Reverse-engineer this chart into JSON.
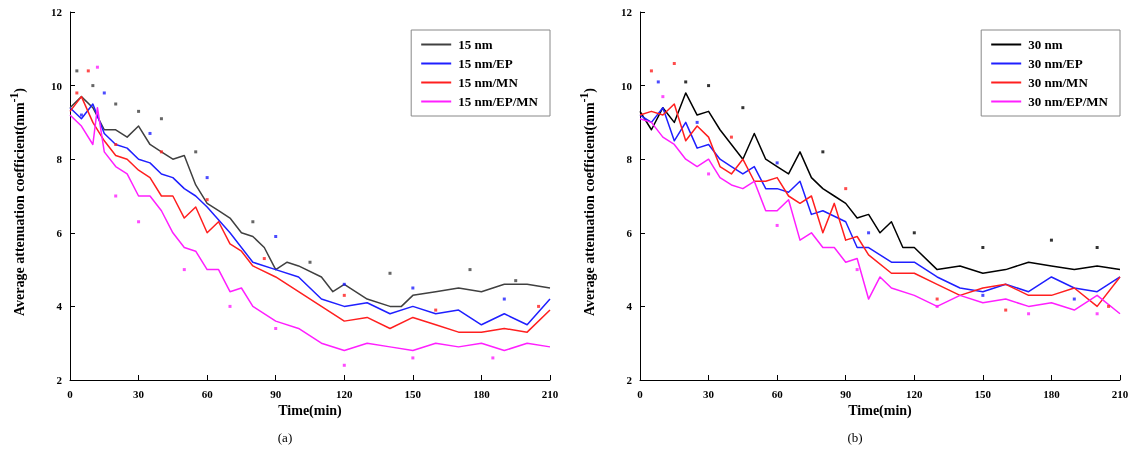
{
  "chart_data": [
    {
      "type": "line",
      "xlabel": "Time(min)",
      "ylabel": "Average attenuation coefficient(mm$^{-1}$)",
      "annotations": [
        "(a)"
      ],
      "xlim": [
        0,
        210
      ],
      "xticks": [
        0,
        30,
        60,
        90,
        120,
        150,
        180,
        210
      ],
      "ylim": [
        2,
        12
      ],
      "yticks": [
        2,
        4,
        6,
        8,
        10,
        12
      ],
      "grid": false,
      "legend": "top right",
      "series": [
        {
          "name": "15 nm",
          "color": "#404040",
          "x": [
            0,
            5,
            10,
            15,
            20,
            25,
            30,
            35,
            40,
            45,
            50,
            55,
            60,
            65,
            70,
            75,
            80,
            85,
            90,
            95,
            100,
            110,
            115,
            120,
            130,
            140,
            145,
            150,
            160,
            170,
            180,
            190,
            200,
            210
          ],
          "values": [
            9.4,
            9.7,
            9.4,
            8.8,
            8.8,
            8.6,
            8.9,
            8.4,
            8.2,
            8.0,
            8.1,
            7.3,
            6.8,
            6.6,
            6.4,
            6.0,
            5.9,
            5.6,
            5.0,
            5.2,
            5.1,
            4.8,
            4.4,
            4.6,
            4.2,
            4.0,
            4.0,
            4.3,
            4.4,
            4.5,
            4.4,
            4.6,
            4.6,
            4.5
          ]
        },
        {
          "name": "15 nm/EP",
          "color": "#1f1fff",
          "x": [
            0,
            5,
            10,
            15,
            20,
            25,
            30,
            35,
            40,
            45,
            50,
            55,
            60,
            70,
            80,
            90,
            100,
            110,
            120,
            130,
            140,
            150,
            160,
            170,
            180,
            190,
            200,
            210
          ],
          "values": [
            9.4,
            9.1,
            9.5,
            8.7,
            8.4,
            8.3,
            8.0,
            7.9,
            7.6,
            7.5,
            7.2,
            7.0,
            6.7,
            6.0,
            5.2,
            5.0,
            4.8,
            4.2,
            4.0,
            4.1,
            3.8,
            4.0,
            3.8,
            3.9,
            3.5,
            3.8,
            3.5,
            4.2
          ]
        },
        {
          "name": "15 nm/MN",
          "color": "#ff1f1f",
          "x": [
            0,
            5,
            10,
            15,
            20,
            25,
            30,
            35,
            40,
            45,
            50,
            55,
            60,
            65,
            70,
            75,
            80,
            90,
            100,
            110,
            120,
            130,
            140,
            150,
            160,
            170,
            180,
            190,
            200,
            210
          ],
          "values": [
            9.3,
            9.7,
            9.0,
            8.5,
            8.1,
            8.0,
            7.7,
            7.5,
            7.0,
            7.0,
            6.4,
            6.7,
            6.0,
            6.3,
            5.7,
            5.5,
            5.1,
            4.8,
            4.4,
            4.0,
            3.6,
            3.7,
            3.4,
            3.7,
            3.5,
            3.3,
            3.3,
            3.4,
            3.3,
            3.9
          ]
        },
        {
          "name": "15 nm/EP/MN",
          "color": "#ff1fff",
          "x": [
            0,
            5,
            10,
            12,
            15,
            20,
            25,
            30,
            35,
            40,
            45,
            50,
            55,
            60,
            65,
            70,
            75,
            80,
            90,
            100,
            110,
            120,
            130,
            140,
            150,
            160,
            170,
            180,
            190,
            200,
            210
          ],
          "values": [
            9.2,
            8.9,
            8.4,
            9.4,
            8.2,
            7.8,
            7.6,
            7.0,
            7.0,
            6.6,
            6.0,
            5.6,
            5.5,
            5.0,
            5.0,
            4.4,
            4.5,
            4.0,
            3.6,
            3.4,
            3.0,
            2.8,
            3.0,
            2.9,
            2.8,
            3.0,
            2.9,
            3.0,
            2.8,
            3.0,
            2.9
          ]
        },
        {
          "type": "scatter",
          "color": "#404040",
          "x": [
            3,
            10,
            20,
            30,
            40,
            55,
            80,
            105,
            140,
            175,
            195
          ],
          "values": [
            10.4,
            10.0,
            9.5,
            9.3,
            9.1,
            8.2,
            6.3,
            5.2,
            4.9,
            5.0,
            4.7
          ]
        },
        {
          "type": "scatter",
          "color": "#1f1fff",
          "x": [
            5,
            15,
            35,
            60,
            90,
            120,
            150,
            190
          ],
          "values": [
            9.2,
            9.8,
            8.7,
            7.5,
            5.9,
            4.6,
            4.5,
            4.2
          ]
        },
        {
          "type": "scatter",
          "color": "#ff1f1f",
          "x": [
            3,
            8,
            20,
            40,
            60,
            85,
            120,
            160,
            205
          ],
          "values": [
            9.8,
            10.4,
            8.4,
            8.2,
            6.9,
            5.3,
            4.3,
            3.9,
            4.0
          ]
        },
        {
          "type": "scatter",
          "color": "#ff1fff",
          "x": [
            12,
            20,
            30,
            50,
            70,
            90,
            120,
            150,
            185
          ],
          "values": [
            10.5,
            7.0,
            6.3,
            5.0,
            4.0,
            3.4,
            2.4,
            2.6,
            2.6
          ]
        }
      ]
    },
    {
      "type": "line",
      "xlabel": "Time(min)",
      "ylabel": "Average attenuation coefficient(mm$^{-1}$)",
      "annotations": [
        "(b)"
      ],
      "xlim": [
        0,
        210
      ],
      "xticks": [
        0,
        30,
        60,
        90,
        120,
        150,
        180,
        210
      ],
      "ylim": [
        2,
        12
      ],
      "yticks": [
        2,
        4,
        6,
        8,
        10,
        12
      ],
      "grid": false,
      "legend": "top right",
      "series": [
        {
          "name": "30 nm",
          "color": "#000000",
          "x": [
            0,
            5,
            10,
            15,
            20,
            25,
            30,
            35,
            40,
            45,
            50,
            55,
            60,
            65,
            70,
            75,
            80,
            85,
            90,
            95,
            100,
            105,
            110,
            115,
            120,
            130,
            140,
            150,
            160,
            170,
            180,
            190,
            200,
            210
          ],
          "values": [
            9.3,
            8.8,
            9.4,
            9.0,
            9.8,
            9.2,
            9.3,
            8.8,
            8.4,
            8.0,
            8.7,
            8.0,
            7.8,
            7.6,
            8.2,
            7.5,
            7.2,
            7.0,
            6.8,
            6.4,
            6.5,
            6.0,
            6.3,
            5.6,
            5.6,
            5.0,
            5.1,
            4.9,
            5.0,
            5.2,
            5.1,
            5.0,
            5.1,
            5.0
          ]
        },
        {
          "name": "30 nm/EP",
          "color": "#1f1fff",
          "x": [
            0,
            5,
            10,
            15,
            20,
            25,
            30,
            35,
            40,
            45,
            50,
            55,
            60,
            65,
            70,
            75,
            80,
            90,
            95,
            100,
            110,
            120,
            130,
            140,
            150,
            160,
            170,
            180,
            190,
            200,
            210
          ],
          "values": [
            9.2,
            9.0,
            9.4,
            8.5,
            9.0,
            8.3,
            8.4,
            8.0,
            7.8,
            7.6,
            7.8,
            7.2,
            7.2,
            7.1,
            7.4,
            6.5,
            6.6,
            6.3,
            5.6,
            5.6,
            5.2,
            5.2,
            4.8,
            4.5,
            4.4,
            4.6,
            4.4,
            4.8,
            4.5,
            4.4,
            4.8
          ]
        },
        {
          "name": "30 nm/MN",
          "color": "#ff1f1f",
          "x": [
            0,
            5,
            10,
            15,
            20,
            25,
            30,
            35,
            40,
            45,
            50,
            55,
            60,
            65,
            70,
            75,
            80,
            85,
            90,
            95,
            100,
            110,
            120,
            130,
            140,
            150,
            160,
            170,
            180,
            190,
            200,
            210
          ],
          "values": [
            9.2,
            9.3,
            9.2,
            9.5,
            8.5,
            8.9,
            8.6,
            7.8,
            7.6,
            8.0,
            7.4,
            7.4,
            7.5,
            7.0,
            6.8,
            7.0,
            6.0,
            6.8,
            5.8,
            5.9,
            5.4,
            4.9,
            4.9,
            4.6,
            4.3,
            4.5,
            4.6,
            4.3,
            4.3,
            4.5,
            4.0,
            4.8
          ]
        },
        {
          "name": "30 nm/EP/MN",
          "color": "#ff1fff",
          "x": [
            0,
            5,
            10,
            15,
            20,
            25,
            30,
            35,
            40,
            45,
            50,
            55,
            60,
            65,
            70,
            75,
            80,
            85,
            90,
            95,
            100,
            105,
            110,
            120,
            130,
            140,
            150,
            160,
            170,
            180,
            190,
            200,
            210
          ],
          "values": [
            9.1,
            9.0,
            8.6,
            8.4,
            8.0,
            7.8,
            8.0,
            7.5,
            7.3,
            7.2,
            7.4,
            6.6,
            6.6,
            6.9,
            5.8,
            6.0,
            5.6,
            5.6,
            5.2,
            5.3,
            4.2,
            4.8,
            4.5,
            4.3,
            4.0,
            4.3,
            4.1,
            4.2,
            4.0,
            4.1,
            3.9,
            4.3,
            3.8
          ]
        },
        {
          "type": "scatter",
          "color": "#000000",
          "x": [
            20,
            30,
            45,
            80,
            120,
            150,
            180,
            200
          ],
          "values": [
            10.1,
            10.0,
            9.4,
            8.2,
            6.0,
            5.6,
            5.8,
            5.6
          ]
        },
        {
          "type": "scatter",
          "color": "#1f1fff",
          "x": [
            8,
            25,
            60,
            100,
            150,
            190
          ],
          "values": [
            10.1,
            9.0,
            7.9,
            6.0,
            4.3,
            4.2
          ]
        },
        {
          "type": "scatter",
          "color": "#ff1f1f",
          "x": [
            5,
            15,
            40,
            90,
            130,
            160,
            205
          ],
          "values": [
            10.4,
            10.6,
            8.6,
            7.2,
            4.2,
            3.9,
            4.0
          ]
        },
        {
          "type": "scatter",
          "color": "#ff1fff",
          "x": [
            10,
            30,
            60,
            95,
            130,
            170,
            200
          ],
          "values": [
            9.7,
            7.6,
            6.2,
            5.0,
            4.0,
            3.8,
            3.8
          ]
        }
      ]
    }
  ]
}
